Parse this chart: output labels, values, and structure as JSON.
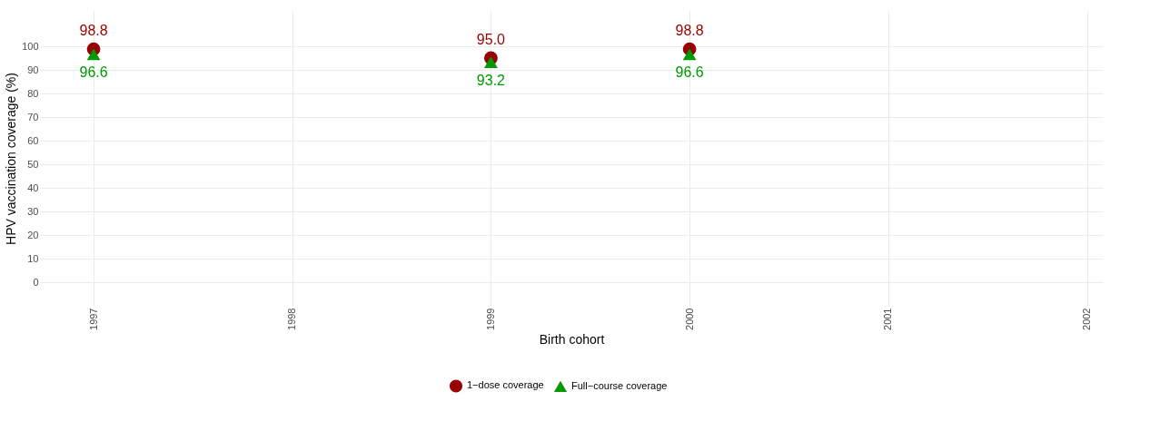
{
  "chart_data": {
    "type": "scatter",
    "xlabel": "Birth cohort",
    "ylabel": "HPV vaccination coverage (%)",
    "x": [
      1997,
      1999,
      2000
    ],
    "series": [
      {
        "name": "1−dose coverage",
        "color": "#990000",
        "marker": "circle",
        "values": [
          98.8,
          95.0,
          98.8
        ],
        "value_labels": [
          "98.8",
          "95.0",
          "98.8"
        ]
      },
      {
        "name": "Full−course coverage",
        "color": "#009900",
        "marker": "triangle",
        "values": [
          96.6,
          93.2,
          96.6
        ],
        "value_labels": [
          "96.6",
          "93.2",
          "96.6"
        ]
      }
    ],
    "xlim": [
      1996.73,
      2002.08
    ],
    "xticks": [
      1997,
      1998,
      1999,
      2000,
      2001,
      2002
    ],
    "ylim": [
      -10,
      115
    ],
    "yticks": [
      0,
      10,
      20,
      30,
      40,
      50,
      60,
      70,
      80,
      90,
      100
    ],
    "grid": true,
    "legend": "bottom"
  }
}
